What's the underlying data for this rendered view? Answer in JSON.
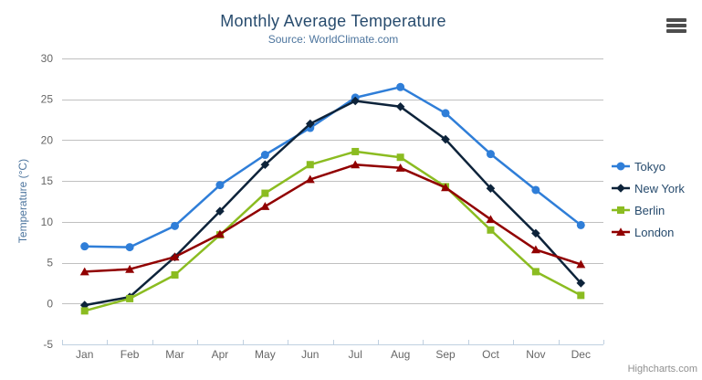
{
  "chart_data": {
    "type": "line",
    "title": "Monthly Average Temperature",
    "subtitle": "Source: WorldClimate.com",
    "categories": [
      "Jan",
      "Feb",
      "Mar",
      "Apr",
      "May",
      "Jun",
      "Jul",
      "Aug",
      "Sep",
      "Oct",
      "Nov",
      "Dec"
    ],
    "xlabel": "",
    "ylabel": "Temperature (°C)",
    "ylim": [
      -5,
      30
    ],
    "y_tick_interval": 5,
    "y_tick_labels": [
      "-5",
      "0",
      "5",
      "10",
      "15",
      "20",
      "25",
      "30"
    ],
    "grid": true,
    "legend_position": "right",
    "series": [
      {
        "name": "Tokyo",
        "color": "#2f7ed8",
        "marker": "circle",
        "values": [
          7.0,
          6.9,
          9.5,
          14.5,
          18.2,
          21.5,
          25.2,
          26.5,
          23.3,
          18.3,
          13.9,
          9.6
        ]
      },
      {
        "name": "New York",
        "color": "#0d233a",
        "marker": "diamond",
        "values": [
          -0.2,
          0.8,
          5.7,
          11.3,
          17.0,
          22.0,
          24.8,
          24.1,
          20.1,
          14.1,
          8.6,
          2.5
        ]
      },
      {
        "name": "Berlin",
        "color": "#8bbc21",
        "marker": "square",
        "values": [
          -0.9,
          0.6,
          3.5,
          8.4,
          13.5,
          17.0,
          18.6,
          17.9,
          14.3,
          9.0,
          3.9,
          1.0
        ]
      },
      {
        "name": "London",
        "color": "#910000",
        "marker": "triangle",
        "values": [
          3.9,
          4.2,
          5.7,
          8.5,
          11.9,
          15.2,
          17.0,
          16.6,
          14.2,
          10.3,
          6.6,
          4.8
        ]
      }
    ]
  },
  "credits": {
    "label": "Highcharts.com"
  },
  "colors": {
    "title_text": "#274b6d",
    "subtitle_text": "#4d759e",
    "axis_label_text": "#666666",
    "axis_title_text": "#4d759e",
    "legend_text": "#274b6d",
    "grid_line": "#c0c0c0",
    "axis_line": "#c0d0e0",
    "credits_text": "#909090",
    "context_button": "#4d4d4d"
  }
}
